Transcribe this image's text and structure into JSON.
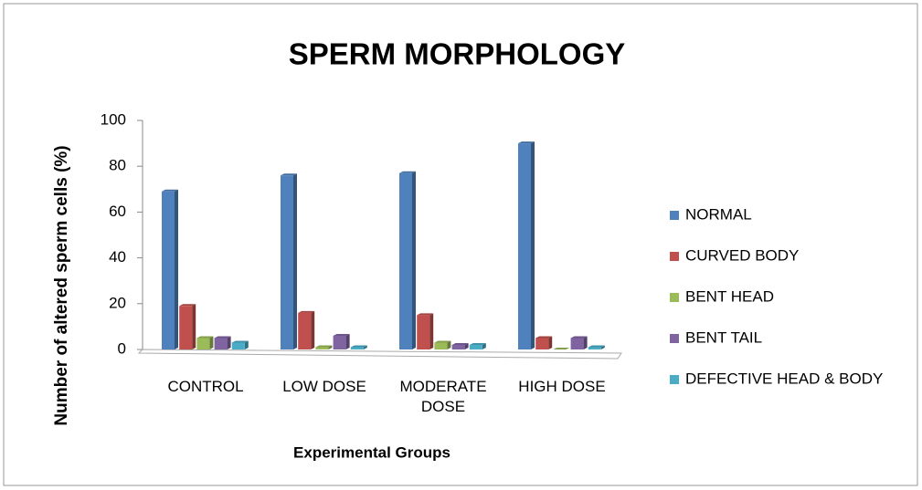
{
  "chart_data": {
    "type": "bar",
    "title": "SPERM MORPHOLOGY",
    "x_label": "Experimental Groups",
    "y_label": "Number of altered sperm cells (%)",
    "categories": [
      "CONTROL",
      "LOW DOSE",
      "MODERATE DOSE",
      "HIGH DOSE"
    ],
    "series": [
      {
        "name": "NORMAL",
        "color": "#4f81bd",
        "values": [
          69,
          76,
          77,
          90
        ]
      },
      {
        "name": "CURVED BODY",
        "color": "#c0504d",
        "values": [
          19,
          16,
          15,
          5
        ]
      },
      {
        "name": "BENT HEAD",
        "color": "#9bbb59",
        "values": [
          5,
          1,
          3,
          0
        ]
      },
      {
        "name": "BENT TAIL",
        "color": "#8064a2",
        "values": [
          5,
          6,
          2,
          5
        ]
      },
      {
        "name": "DEFECTIVE HEAD & BODY",
        "color": "#4bacc6",
        "values": [
          3,
          1,
          2,
          1
        ]
      }
    ],
    "ylim": [
      0,
      100
    ],
    "yticks": [
      0,
      20,
      40,
      60,
      80,
      100
    ],
    "legend": "right"
  }
}
